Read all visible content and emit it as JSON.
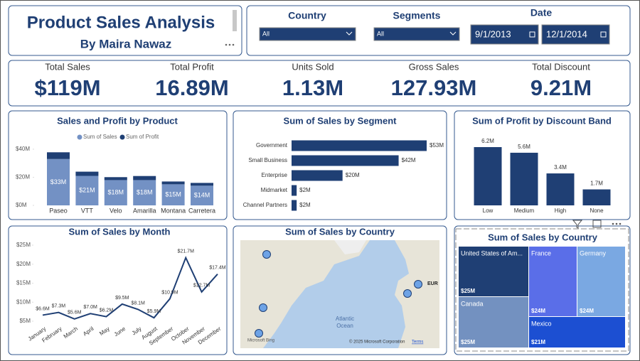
{
  "header": {
    "title": "Product Sales Analysis",
    "subtitle": "By Maira Nawaz"
  },
  "filters": {
    "country": {
      "label": "Country",
      "value": "All"
    },
    "segments": {
      "label": "Segments",
      "value": "All"
    },
    "date": {
      "label": "Date",
      "start": "9/1/2013",
      "end": "12/1/2014"
    }
  },
  "kpis": [
    {
      "label": "Total Sales",
      "value": "$119M"
    },
    {
      "label": "Total Profit",
      "value": "16.89M"
    },
    {
      "label": "Units Sold",
      "value": "1.13M"
    },
    {
      "label": "Gross Sales",
      "value": "127.93M"
    },
    {
      "label": "Total Discount",
      "value": "9.21M"
    }
  ],
  "chart_data": [
    {
      "type": "stacked-bar",
      "title": "Sales and Profit by Product",
      "categories": [
        "Paseo",
        "VTT",
        "Velo",
        "Amarilla",
        "Montana",
        "Carretera"
      ],
      "series": [
        {
          "name": "Sum of  Sales",
          "color": "#7391c4",
          "values": [
            33,
            21,
            18,
            18,
            15,
            14
          ],
          "value_labels": [
            "$33M",
            "$21M",
            "$18M",
            "$18M",
            "$15M",
            "$14M"
          ]
        },
        {
          "name": "Sum of Profit",
          "color": "#1f3f74",
          "values": [
            4.8,
            3.0,
            2.1,
            2.9,
            2.0,
            2.0
          ]
        }
      ],
      "ylim": [
        0,
        42
      ],
      "yticks": [
        {
          "value": 0,
          "label": "$0M"
        },
        {
          "value": 20,
          "label": "$20M"
        },
        {
          "value": 40,
          "label": "$40M"
        }
      ]
    },
    {
      "type": "hbar",
      "title": "Sum of Sales by Segment",
      "categories": [
        "Government",
        "Small Business",
        "Enterprise",
        "Midmarket",
        "Channel Partners"
      ],
      "values": [
        53,
        42,
        20,
        2,
        2
      ],
      "value_labels": [
        "$53M",
        "$42M",
        "$20M",
        "$2M",
        "$2M"
      ],
      "color": "#1f3f74"
    },
    {
      "type": "bar",
      "title": "Sum of Profit by Discount Band",
      "categories": [
        "Low",
        "Medium",
        "High",
        "None"
      ],
      "values": [
        6.2,
        5.6,
        3.4,
        1.7
      ],
      "value_labels": [
        "6.2M",
        "5.6M",
        "3.4M",
        "1.7M"
      ],
      "color": "#1f3f74"
    },
    {
      "type": "line",
      "title": "Sum of Sales by Month",
      "categories": [
        "January",
        "February",
        "March",
        "April",
        "May",
        "June",
        "July",
        "August",
        "September",
        "October",
        "November",
        "December"
      ],
      "values": [
        6.6,
        7.3,
        5.6,
        7.0,
        6.2,
        9.5,
        8.1,
        5.9,
        10.9,
        21.7,
        12.7,
        17.4
      ],
      "value_labels": [
        "$6.6M",
        "$7.3M",
        "$5.6M",
        "$7.0M",
        "$6.2M",
        "$9.5M",
        "$8.1M",
        "$5.9M",
        "$10.9M",
        "$21.7M",
        "$12.7M",
        "$17.4M"
      ],
      "color": "#1f3f74",
      "ylim": [
        5,
        25
      ],
      "yticks": [
        {
          "value": 5,
          "label": "$5M"
        },
        {
          "value": 10,
          "label": "$10M"
        },
        {
          "value": 15,
          "label": "$15M"
        },
        {
          "value": 20,
          "label": "$20M"
        },
        {
          "value": 25,
          "label": "$25M"
        }
      ]
    },
    {
      "type": "map",
      "title": "Sum of Sales by Country",
      "ocean_label": [
        "Atlantic",
        "Ocean"
      ],
      "region_label": "EUR",
      "attribution": "© 2025 Microsoft Corporation",
      "terms": "Terms",
      "provider": "Microsoft Bing"
    },
    {
      "type": "treemap",
      "title": "Sum of Sales by Country",
      "categories": [
        "United States of Am...",
        "Canada",
        "France",
        "Germany",
        "Mexico"
      ],
      "values": [
        25,
        25,
        24,
        24,
        21
      ],
      "value_labels": [
        "$25M",
        "$25M",
        "$24M",
        "$24M",
        "$21M"
      ],
      "colors": [
        "#1f3f74",
        "#7391c0",
        "#5a6ee8",
        "#7aa8e2",
        "#1c4fd2"
      ]
    }
  ]
}
